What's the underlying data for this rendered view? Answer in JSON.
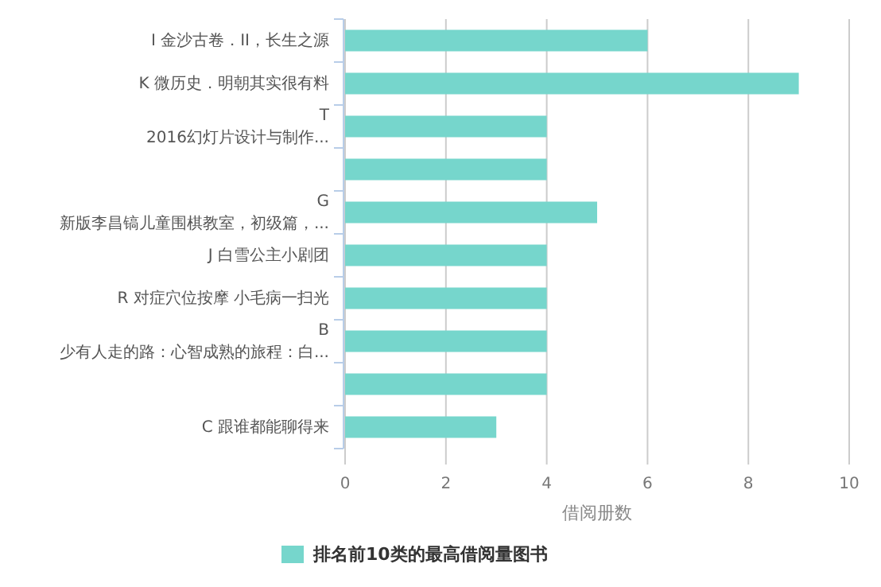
{
  "chart_data": {
    "type": "bar",
    "orientation": "horizontal",
    "xlabel": "借阅册数",
    "categories": [
      "I 金沙古卷．II，长生之源",
      "K 微历史．明朝其实很有料",
      "T\n2016幻灯片设计与制作...",
      null,
      "G\n新版李昌镐儿童围棋教室，初级篇，...",
      "J 白雪公主小剧团",
      "R 对症穴位按摩 小毛病一扫光",
      "B\n少有人走的路：心智成熟的旅程：白...",
      null,
      "C 跟谁都能聊得来"
    ],
    "series": [
      {
        "name": "排名前10类的最高借阅量图书",
        "color": "#76d6cc",
        "values": [
          6,
          9,
          4,
          4,
          5,
          4,
          4,
          4,
          4,
          3
        ]
      }
    ],
    "xlim": [
      0,
      10
    ],
    "xticks": [
      0,
      2,
      4,
      6,
      8,
      10
    ],
    "grid": "x",
    "legend": "bottom"
  }
}
